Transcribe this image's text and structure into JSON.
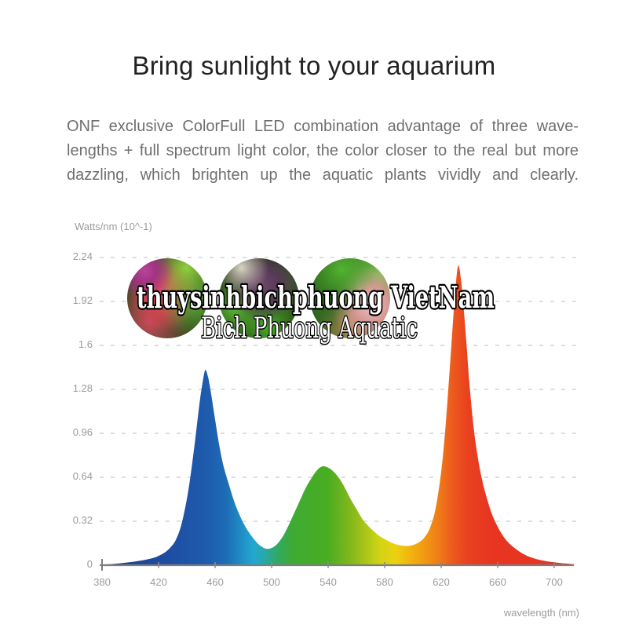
{
  "title": "Bring sunlight to your aquarium",
  "description": {
    "lines": [
      "ONF exclusive  ColorFull LED combination advantage of three wave-",
      "lengths + full spectrum light color, the color closer to the real but more",
      "dazzling, which brighten up the aquatic plants vividly and clearly."
    ]
  },
  "watermark": {
    "line1": "thuysinhbichphuong VietNam",
    "line2": "Bich Phuong Aquatic",
    "photos": [
      "red-pink-aquatic-plants",
      "purple-aquatic-plant",
      "green-pink-aquatic-plants"
    ]
  },
  "chart_data": {
    "type": "area",
    "ylabel": "Watts/nm (10^-1)",
    "xlabel": "wavelength (nm)",
    "ylim": [
      0,
      2.24
    ],
    "xlim": [
      380,
      714
    ],
    "yticks": [
      "0",
      "0.32",
      "0.64",
      "0.96",
      "1.28",
      "1.6",
      "1.92",
      "2.24"
    ],
    "xticks": [
      "380",
      "420",
      "460",
      "500",
      "540",
      "580",
      "620",
      "660",
      "700"
    ],
    "grid": "horizontal-dashed",
    "legend": "none",
    "peaks": [
      {
        "band": "blue",
        "wavelength_nm": 453,
        "value": 1.42
      },
      {
        "band": "green",
        "wavelength_nm": 536,
        "value": 0.72
      },
      {
        "band": "red",
        "wavelength_nm": 632,
        "value": 2.18
      }
    ],
    "series": [
      {
        "name": "spectral-power",
        "points": [
          [
            380,
            0.005
          ],
          [
            386,
            0.008
          ],
          [
            392,
            0.013
          ],
          [
            398,
            0.02
          ],
          [
            404,
            0.028
          ],
          [
            410,
            0.038
          ],
          [
            416,
            0.052
          ],
          [
            420,
            0.068
          ],
          [
            424,
            0.09
          ],
          [
            428,
            0.125
          ],
          [
            432,
            0.18
          ],
          [
            436,
            0.29
          ],
          [
            440,
            0.48
          ],
          [
            443,
            0.68
          ],
          [
            446,
            0.92
          ],
          [
            449,
            1.18
          ],
          [
            451,
            1.32
          ],
          [
            453,
            1.42
          ],
          [
            455,
            1.37
          ],
          [
            457,
            1.26
          ],
          [
            460,
            1.06
          ],
          [
            463,
            0.87
          ],
          [
            466,
            0.72
          ],
          [
            470,
            0.58
          ],
          [
            474,
            0.45
          ],
          [
            478,
            0.35
          ],
          [
            482,
            0.27
          ],
          [
            486,
            0.21
          ],
          [
            490,
            0.16
          ],
          [
            493,
            0.135
          ],
          [
            496,
            0.12
          ],
          [
            500,
            0.125
          ],
          [
            504,
            0.155
          ],
          [
            508,
            0.21
          ],
          [
            512,
            0.29
          ],
          [
            516,
            0.38
          ],
          [
            520,
            0.47
          ],
          [
            524,
            0.56
          ],
          [
            528,
            0.63
          ],
          [
            532,
            0.69
          ],
          [
            536,
            0.72
          ],
          [
            540,
            0.71
          ],
          [
            544,
            0.68
          ],
          [
            548,
            0.63
          ],
          [
            552,
            0.56
          ],
          [
            556,
            0.48
          ],
          [
            560,
            0.41
          ],
          [
            564,
            0.34
          ],
          [
            568,
            0.29
          ],
          [
            572,
            0.25
          ],
          [
            576,
            0.215
          ],
          [
            580,
            0.19
          ],
          [
            584,
            0.168
          ],
          [
            588,
            0.152
          ],
          [
            592,
            0.143
          ],
          [
            596,
            0.14
          ],
          [
            600,
            0.147
          ],
          [
            604,
            0.165
          ],
          [
            608,
            0.2
          ],
          [
            612,
            0.27
          ],
          [
            616,
            0.41
          ],
          [
            620,
            0.68
          ],
          [
            623,
            1.0
          ],
          [
            626,
            1.42
          ],
          [
            628,
            1.72
          ],
          [
            630,
            2.0
          ],
          [
            632,
            2.18
          ],
          [
            634,
            2.08
          ],
          [
            636,
            1.86
          ],
          [
            638,
            1.6
          ],
          [
            640,
            1.32
          ],
          [
            643,
            1.0
          ],
          [
            646,
            0.78
          ],
          [
            649,
            0.62
          ],
          [
            652,
            0.5
          ],
          [
            656,
            0.37
          ],
          [
            660,
            0.28
          ],
          [
            664,
            0.21
          ],
          [
            668,
            0.16
          ],
          [
            672,
            0.125
          ],
          [
            676,
            0.095
          ],
          [
            680,
            0.072
          ],
          [
            685,
            0.052
          ],
          [
            690,
            0.038
          ],
          [
            695,
            0.028
          ],
          [
            700,
            0.021
          ],
          [
            705,
            0.015
          ],
          [
            710,
            0.011
          ],
          [
            714,
            0.008
          ]
        ]
      }
    ],
    "gradient_stops": [
      {
        "wavelength": 380,
        "color": "#1e3f8c"
      },
      {
        "wavelength": 430,
        "color": "#1e4fa4"
      },
      {
        "wavelength": 455,
        "color": "#1e5cae"
      },
      {
        "wavelength": 468,
        "color": "#1d6db6"
      },
      {
        "wavelength": 478,
        "color": "#1f8cc4"
      },
      {
        "wavelength": 487,
        "color": "#23a7d2"
      },
      {
        "wavelength": 495,
        "color": "#27a9a6"
      },
      {
        "wavelength": 505,
        "color": "#32a960"
      },
      {
        "wavelength": 515,
        "color": "#3dab32"
      },
      {
        "wavelength": 540,
        "color": "#4aad22"
      },
      {
        "wavelength": 558,
        "color": "#8aba1c"
      },
      {
        "wavelength": 576,
        "color": "#cfd414"
      },
      {
        "wavelength": 588,
        "color": "#ecd110"
      },
      {
        "wavelength": 598,
        "color": "#f2b30f"
      },
      {
        "wavelength": 608,
        "color": "#f19a12"
      },
      {
        "wavelength": 618,
        "color": "#ef7d16"
      },
      {
        "wavelength": 628,
        "color": "#ec5a1e"
      },
      {
        "wavelength": 638,
        "color": "#e9421f"
      },
      {
        "wavelength": 655,
        "color": "#e73522"
      },
      {
        "wavelength": 714,
        "color": "#e63523"
      }
    ],
    "colors": {
      "axis": "#7d7d7d",
      "grid": "#d9d9d9",
      "tick_text": "#9b9b9b"
    }
  }
}
